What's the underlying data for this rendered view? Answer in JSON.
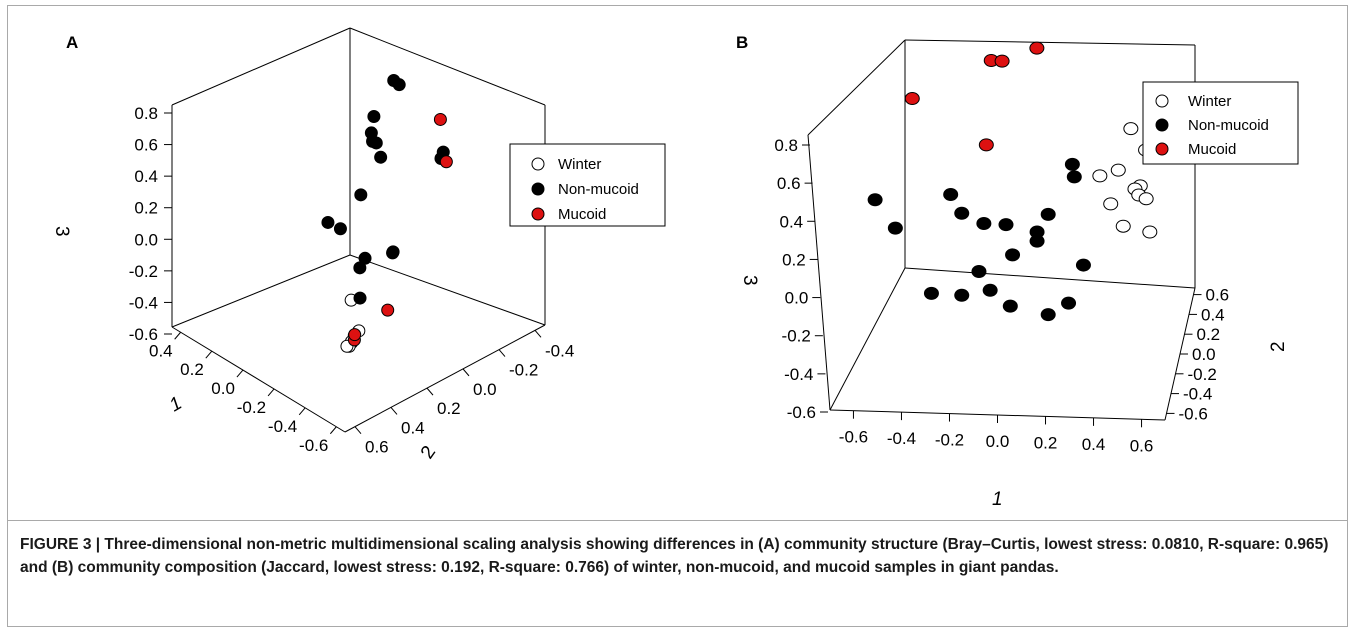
{
  "caption": {
    "lead": "FIGURE 3 | Three-dimensional non-metric multidimensional scaling analysis showing differences in (A) community structure (Bray–Curtis, lowest stress: 0.0810, R-square: 0.965) and (B) community composition (Jaccard, lowest stress: 0.192, R-square: 0.766) of winter, non-mucoid, and mucoid samples in giant pandas."
  },
  "colors": {
    "winter": "#ffffff",
    "non_mucoid": "#000000",
    "mucoid": "#dd1111"
  },
  "chart_data": [
    {
      "type": "scatter",
      "panel": "A",
      "title": "",
      "axes": {
        "z": {
          "label": "3",
          "ticks": [
            "0.8",
            "0.6",
            "0.4",
            "0.2",
            "0.0",
            "-0.2",
            "-0.4",
            "-0.6"
          ]
        },
        "x": {
          "label": "1",
          "ticks": [
            "0.4",
            "0.2",
            "0.0",
            "-0.2",
            "-0.4",
            "-0.6"
          ]
        },
        "y": {
          "label": "2",
          "ticks": [
            "-0.4",
            "-0.2",
            "0.0",
            "0.2",
            "0.4",
            "0.6"
          ]
        }
      },
      "legend": {
        "position": "right",
        "entries": [
          "Winter",
          "Non-mucoid",
          "Mucoid"
        ]
      },
      "series": [
        {
          "name": "Winter",
          "color": "#ffffff",
          "points": [
            {
              "x": -0.15,
              "y": 0.18,
              "z": -0.35
            },
            {
              "x": -0.35,
              "y": 0.35,
              "z": -0.37
            },
            {
              "x": -0.33,
              "y": 0.32,
              "z": -0.36
            },
            {
              "x": -0.34,
              "y": 0.34,
              "z": -0.38
            },
            {
              "x": -0.36,
              "y": 0.36,
              "z": -0.35
            },
            {
              "x": -0.37,
              "y": 0.38,
              "z": -0.36
            },
            {
              "x": -0.31,
              "y": 0.28,
              "z": -0.37
            },
            {
              "x": -0.38,
              "y": 0.4,
              "z": -0.34
            }
          ]
        },
        {
          "name": "Non-mucoid",
          "color": "#000000",
          "points": [
            {
              "x": 0.1,
              "y": -0.15,
              "z": 0.42
            },
            {
              "x": 0.08,
              "y": -0.12,
              "z": 0.35
            },
            {
              "x": 0.05,
              "y": -0.1,
              "z": 0.33
            },
            {
              "x": 0.04,
              "y": -0.11,
              "z": 0.32
            },
            {
              "x": -0.02,
              "y": -0.08,
              "z": 0.29
            },
            {
              "x": 0.02,
              "y": -0.18,
              "z": 0.68
            },
            {
              "x": 0.0,
              "y": -0.19,
              "z": 0.66
            },
            {
              "x": -0.22,
              "y": -0.22,
              "z": 0.36
            },
            {
              "x": -0.23,
              "y": -0.2,
              "z": 0.34
            },
            {
              "x": 0.06,
              "y": -0.05,
              "z": 0.02
            },
            {
              "x": 0.12,
              "y": 0.0,
              "z": -0.2
            },
            {
              "x": 0.25,
              "y": -0.05,
              "z": -0.28
            },
            {
              "x": -0.08,
              "y": 0.05,
              "z": -0.22
            },
            {
              "x": -0.05,
              "y": 0.05,
              "z": -0.3
            },
            {
              "x": -0.3,
              "y": 0.1,
              "z": 0.0
            },
            {
              "x": -0.32,
              "y": 0.12,
              "z": 0.02
            },
            {
              "x": -0.34,
              "y": 0.3,
              "z": -0.13
            }
          ]
        },
        {
          "name": "Mucoid",
          "color": "#dd1111",
          "points": [
            {
              "x": -0.4,
              "y": -0.05,
              "z": 0.8
            },
            {
              "x": -0.55,
              "y": 0.05,
              "z": 0.7
            },
            {
              "x": -0.5,
              "y": 0.3,
              "z": -0.1
            },
            {
              "x": -0.4,
              "y": 0.38,
              "z": -0.3
            },
            {
              "x": -0.39,
              "y": 0.37,
              "z": -0.28
            }
          ]
        }
      ]
    },
    {
      "type": "scatter",
      "panel": "B",
      "title": "",
      "axes": {
        "z": {
          "label": "3",
          "ticks": [
            "0.8",
            "0.6",
            "0.4",
            "0.2",
            "0.0",
            "-0.2",
            "-0.4",
            "-0.6"
          ]
        },
        "x": {
          "label": "1",
          "ticks": [
            "-0.6",
            "-0.4",
            "-0.2",
            "0.0",
            "0.2",
            "0.4",
            "0.6"
          ]
        },
        "y": {
          "label": "2",
          "ticks": [
            "0.6",
            "0.4",
            "0.2",
            "0.0",
            "-0.2",
            "-0.4",
            "-0.6"
          ]
        }
      },
      "legend": {
        "position": "top-right",
        "entries": [
          "Winter",
          "Non-mucoid",
          "Mucoid"
        ]
      },
      "series": [
        {
          "name": "Winter",
          "color": "#ffffff",
          "points": [
            {
              "x": 0.45,
              "y": 0.2,
              "z": 0.5
            },
            {
              "x": 0.52,
              "y": 0.18,
              "z": 0.4
            },
            {
              "x": 0.4,
              "y": 0.15,
              "z": 0.3
            },
            {
              "x": 0.5,
              "y": 0.15,
              "z": 0.22
            },
            {
              "x": 0.48,
              "y": 0.12,
              "z": 0.22
            },
            {
              "x": 0.5,
              "y": 0.1,
              "z": 0.2
            },
            {
              "x": 0.52,
              "y": 0.2,
              "z": 0.12
            },
            {
              "x": 0.3,
              "y": 0.25,
              "z": 0.2
            },
            {
              "x": 0.35,
              "y": 0.25,
              "z": 0.05
            },
            {
              "x": 0.55,
              "y": 0.1,
              "z": 0.0
            },
            {
              "x": 0.4,
              "y": 0.3,
              "z": -0.1
            }
          ]
        },
        {
          "name": "Non-mucoid",
          "color": "#000000",
          "points": [
            {
              "x": -0.65,
              "y": -0.05,
              "z": 0.2
            },
            {
              "x": -0.6,
              "y": 0.1,
              "z": -0.05
            },
            {
              "x": -0.35,
              "y": 0.1,
              "z": 0.15
            },
            {
              "x": -0.3,
              "y": 0.1,
              "z": 0.05
            },
            {
              "x": -0.2,
              "y": 0.1,
              "z": 0.0
            },
            {
              "x": -0.1,
              "y": 0.1,
              "z": 0.0
            },
            {
              "x": 0.05,
              "y": 0.05,
              "z": 0.0
            },
            {
              "x": 0.2,
              "y": 0.1,
              "z": 0.35
            },
            {
              "x": 0.2,
              "y": 0.15,
              "z": 0.25
            },
            {
              "x": 0.1,
              "y": 0.05,
              "z": 0.1
            },
            {
              "x": 0.05,
              "y": 0.05,
              "z": -0.05
            },
            {
              "x": -0.05,
              "y": 0.0,
              "z": -0.1
            },
            {
              "x": -0.2,
              "y": 0.0,
              "z": -0.2
            },
            {
              "x": -0.15,
              "y": 0.0,
              "z": -0.3
            },
            {
              "x": -0.05,
              "y": -0.05,
              "z": -0.35
            },
            {
              "x": -0.4,
              "y": -0.05,
              "z": -0.3
            },
            {
              "x": -0.3,
              "y": 0.1,
              "z": -0.4
            },
            {
              "x": 0.1,
              "y": 0.05,
              "z": -0.45
            },
            {
              "x": 0.2,
              "y": 0.0,
              "z": -0.35
            },
            {
              "x": 0.25,
              "y": 0.1,
              "z": -0.2
            }
          ]
        },
        {
          "name": "Mucoid",
          "color": "#dd1111",
          "points": [
            {
              "x": -0.55,
              "y": 0.2,
              "z": 0.6
            },
            {
              "x": -0.2,
              "y": 0.25,
              "z": 0.8
            },
            {
              "x": -0.15,
              "y": 0.25,
              "z": 0.8
            },
            {
              "x": 0.0,
              "y": 0.3,
              "z": 0.85
            },
            {
              "x": -0.2,
              "y": 0.15,
              "z": 0.4
            }
          ]
        }
      ]
    }
  ]
}
